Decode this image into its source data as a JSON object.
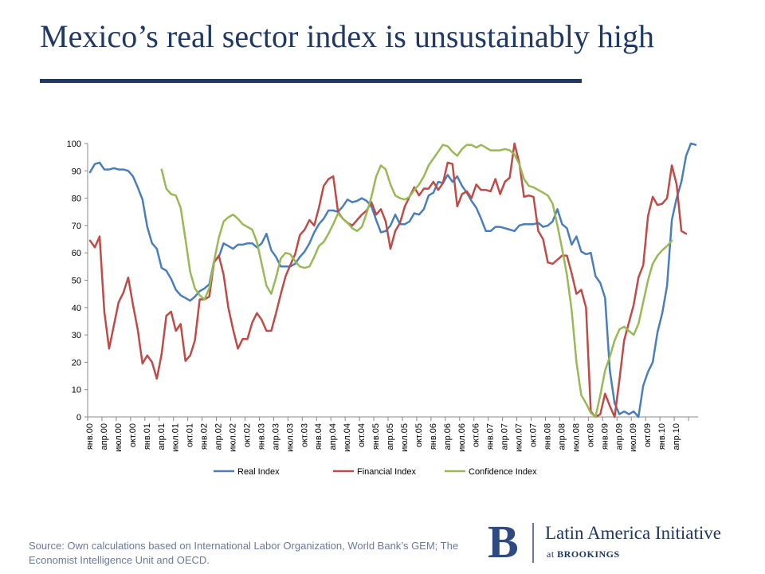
{
  "slide": {
    "title": "Mexico’s real sector index is unsustainably high",
    "source": "Source: Own calculations based on International Labor Organization, World Bank’s GEM; The Economist Intelligence Unit  and OECD.",
    "logo": {
      "mark": "B",
      "name": "Latin America Initiative",
      "sub_prefix": "at ",
      "sub_org": "BROOKINGS"
    }
  },
  "colors": {
    "title": "#1f3864",
    "real": "#4a7ebb",
    "financial": "#be4b48",
    "confidence": "#98b954",
    "axis": "#888888"
  },
  "chart_data": {
    "type": "line",
    "title": "",
    "xlabel": "",
    "ylabel": "",
    "ylim": [
      0,
      100
    ],
    "yticks": [
      0,
      10,
      20,
      30,
      40,
      50,
      60,
      70,
      80,
      90,
      100
    ],
    "grid": false,
    "legend": "bottom",
    "x_tick_labels": [
      "янв.00",
      "апр.00",
      "июл.00",
      "окт.00",
      "янв.01",
      "апр.01",
      "июл.01",
      "окт.01",
      "янв.02",
      "апр.02",
      "июл.02",
      "окт.02",
      "янв.03",
      "апр.03",
      "июл.03",
      "окт.03",
      "янв.04",
      "апр.04",
      "июл.04",
      "окт.04",
      "янв.05",
      "апр.05",
      "июл.05",
      "окт.05",
      "янв.06",
      "апр.06",
      "июл.06",
      "окт.06",
      "янв.07",
      "апр.07",
      "июл.07",
      "окт.07",
      "янв.08",
      "апр.08",
      "июл.08",
      "окт.08",
      "янв.09",
      "апр.09",
      "июл.09",
      "окт.09",
      "янв.10",
      "апр.10"
    ],
    "x_start": "2000-01",
    "series": [
      {
        "name": "Real Index",
        "color": "#4a7ebb",
        "values": [
          89.5,
          92.5,
          93,
          90.5,
          90.5,
          91,
          90.5,
          90.5,
          90,
          88,
          84,
          79.5,
          69.5,
          63.5,
          61.5,
          54.5,
          53.5,
          50.5,
          46.5,
          44.5,
          43.5,
          42.5,
          44,
          46,
          47,
          48.5,
          57,
          58.5,
          63.5,
          62.5,
          61.5,
          63,
          63,
          63.5,
          63.5,
          62,
          63.5,
          67,
          61,
          58.5,
          55,
          55,
          55,
          56,
          58.5,
          60.5,
          63.5,
          67.5,
          70.5,
          72.5,
          75.5,
          75.5,
          75,
          77,
          79.5,
          78.5,
          79,
          80,
          79,
          77,
          72,
          67.5,
          68,
          70,
          74,
          70.5,
          70.5,
          71.5,
          74.5,
          74,
          76,
          81,
          82,
          86,
          85.5,
          88.5,
          86,
          88,
          84.5,
          82,
          79,
          76.5,
          72.5,
          68,
          68,
          69.5,
          69.5,
          69,
          68.5,
          68,
          70,
          70.5,
          70.5,
          70.5,
          71,
          69.5,
          70,
          71.5,
          76,
          70.5,
          69,
          63,
          66,
          60.5,
          59.5,
          60,
          51.5,
          49,
          43.5,
          17,
          5,
          1,
          2,
          1,
          2,
          0,
          11.5,
          16.5,
          20,
          31,
          38,
          48,
          72,
          80,
          86,
          95.5,
          100,
          99.5
        ]
      },
      {
        "name": "Financial Index",
        "color": "#be4b48",
        "values": [
          64.5,
          62,
          66,
          38.5,
          25,
          33.5,
          42,
          45.5,
          51,
          41,
          32,
          19.5,
          22.5,
          20,
          14,
          23,
          37,
          38.5,
          31.5,
          34,
          20.5,
          22.5,
          28,
          43,
          43,
          44,
          56.5,
          59,
          52,
          40,
          32,
          25,
          28.5,
          28.5,
          34.5,
          38,
          35.5,
          31.5,
          31.5,
          38,
          45,
          51.5,
          55.5,
          59.5,
          66.5,
          68.5,
          72,
          70,
          76.5,
          84.5,
          87,
          88,
          75,
          72.5,
          71,
          70,
          72,
          74,
          75.5,
          78.5,
          74,
          76,
          71.5,
          61.5,
          68,
          71,
          77,
          80.5,
          84,
          81,
          83.5,
          83.5,
          86,
          83,
          85.5,
          93,
          92.5,
          77,
          81.5,
          82.5,
          80,
          85,
          83,
          83,
          82.5,
          87,
          81.5,
          86,
          87.5,
          100,
          93,
          80.5,
          81,
          80.5,
          68,
          65,
          56.5,
          56,
          57.5,
          59,
          59,
          52.5,
          45,
          46.5,
          40,
          2,
          0,
          1,
          8.5,
          4,
          0,
          13.5,
          28,
          34.5,
          41,
          51,
          55.5,
          73.5,
          80.5,
          77.5,
          78,
          80,
          92,
          85,
          68,
          67
        ]
      },
      {
        "name": "Confidence Index",
        "color": "#98b954",
        "values": [
          null,
          null,
          null,
          null,
          null,
          null,
          null,
          null,
          null,
          null,
          null,
          null,
          null,
          null,
          null,
          90.5,
          83.5,
          81.5,
          81,
          76.5,
          65,
          53,
          47,
          44.5,
          43,
          47,
          57,
          65.5,
          71.5,
          73,
          74,
          72.5,
          70.5,
          69.5,
          68.5,
          64,
          56,
          48,
          45,
          51,
          58,
          60,
          59.5,
          57,
          55,
          54.5,
          55,
          58.5,
          62.5,
          64,
          67,
          70.5,
          74.5,
          72.5,
          71,
          69,
          68,
          69.5,
          74.5,
          80.5,
          88,
          92,
          90.5,
          85,
          81,
          80,
          79.5,
          80.5,
          83,
          85,
          88,
          92,
          94.5,
          97,
          99.5,
          99,
          97,
          95.5,
          98,
          99.5,
          99.5,
          98.5,
          99.5,
          98.5,
          97.5,
          97.5,
          97.5,
          98,
          97.5,
          96,
          92.5,
          87,
          84.5,
          84,
          83,
          82,
          81,
          78,
          70,
          61.5,
          52,
          39,
          20,
          8,
          5,
          1.5,
          0,
          8,
          17,
          22,
          28,
          32,
          33,
          31.5,
          30,
          34,
          42,
          50,
          56,
          59,
          61,
          62.5,
          64.5
        ]
      }
    ]
  }
}
